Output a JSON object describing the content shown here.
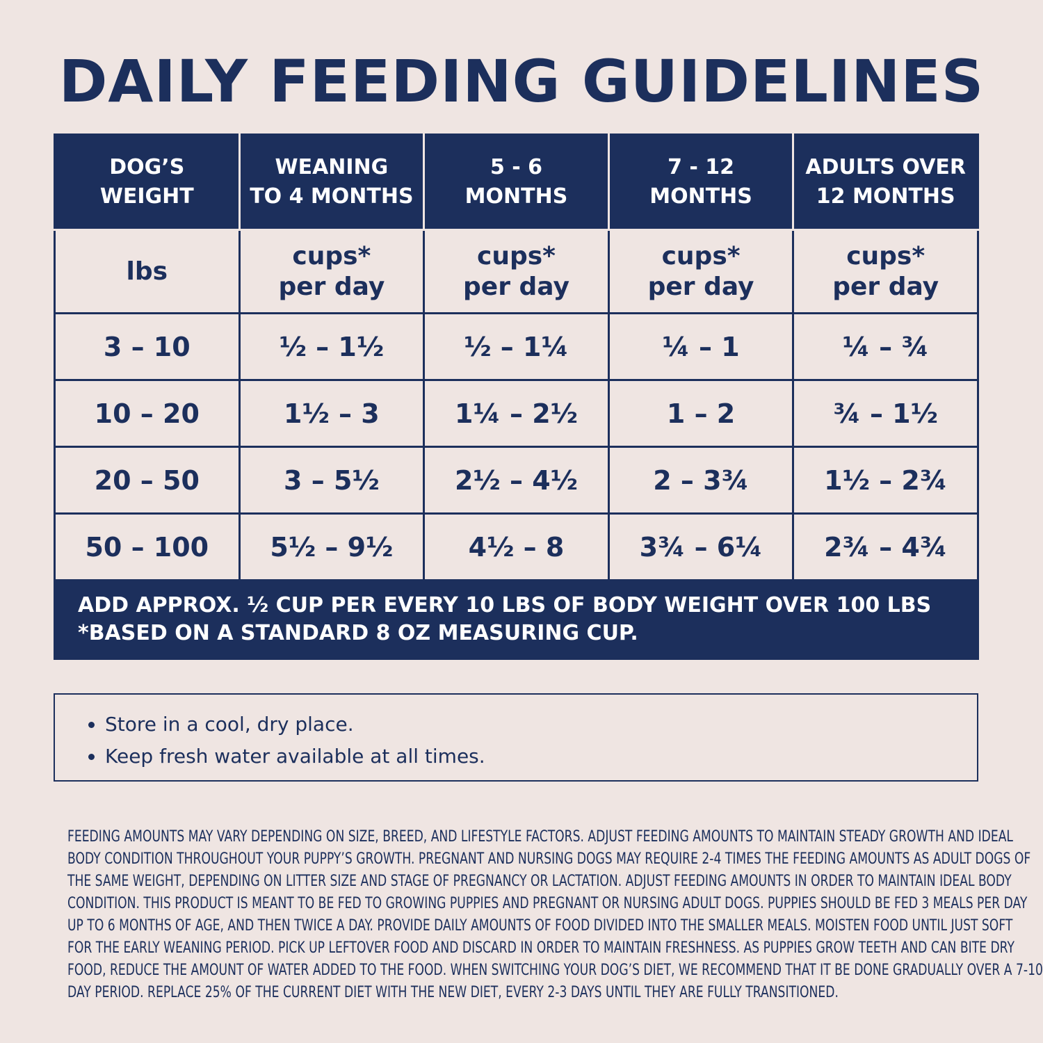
{
  "title": "DAILY FEEDING GUIDELINES",
  "table": {
    "header": [
      [
        "DOG’S",
        "WEIGHT"
      ],
      [
        "WEANING",
        "TO 4 MONTHS"
      ],
      [
        "5 - 6",
        "MONTHS"
      ],
      [
        "7 - 12",
        "MONTHS"
      ],
      [
        "ADULTS OVER",
        "12 MONTHS"
      ]
    ],
    "units": [
      [
        "lbs"
      ],
      [
        "cups*",
        "per day"
      ],
      [
        "cups*",
        "per day"
      ],
      [
        "cups*",
        "per day"
      ],
      [
        "cups*",
        "per day"
      ]
    ],
    "rows": [
      [
        "3 – 10",
        "½ – 1½",
        "½ – 1¼",
        "¼ – 1",
        "¼ – ¾"
      ],
      [
        "10 – 20",
        "1½ – 3",
        "1¼ – 2½",
        "1 – 2",
        "¾ – 1½"
      ],
      [
        "20 – 50",
        "3 – 5½",
        "2½ – 4½",
        "2 – 3¾",
        "1½ – 2¾"
      ],
      [
        "50 – 100",
        "5½ – 9½",
        "4½ – 8",
        "3¾ – 6¼",
        "2¾ – 4¾"
      ]
    ],
    "footer": [
      "ADD APPROX. ½ CUP PER EVERY 10 LBS OF BODY WEIGHT OVER 100 LBS",
      "*BASED ON A STANDARD 8 OZ MEASURING CUP."
    ]
  },
  "notes": [
    "Store in a cool, dry place.",
    "Keep fresh water available at all times."
  ],
  "fine_print": [
    "FEEDING AMOUNTS MAY VARY DEPENDING ON SIZE, BREED, AND LIFESTYLE FACTORS. ADJUST FEEDING AMOUNTS TO MAINTAIN STEADY GROWTH AND IDEAL",
    "BODY CONDITION THROUGHOUT YOUR PUPPY’S GROWTH. PREGNANT AND NURSING DOGS MAY REQUIRE 2-4 TIMES THE FEEDING AMOUNTS AS ADULT DOGS OF",
    "THE SAME WEIGHT, DEPENDING ON LITTER SIZE AND STAGE OF PREGNANCY OR LACTATION. ADJUST FEEDING AMOUNTS IN ORDER TO MAINTAIN IDEAL BODY",
    "CONDITION. THIS PRODUCT IS MEANT TO BE FED TO GROWING PUPPIES AND PREGNANT OR NURSING ADULT DOGS. PUPPIES SHOULD BE FED 3 MEALS PER DAY",
    "UP TO 6 MONTHS OF AGE, AND THEN TWICE A DAY. PROVIDE DAILY AMOUNTS OF FOOD DIVIDED INTO THE SMALLER MEALS. MOISTEN FOOD UNTIL JUST SOFT",
    "FOR THE EARLY WEANING PERIOD. PICK UP LEFTOVER FOOD AND DISCARD IN ORDER TO MAINTAIN FRESHNESS. AS PUPPIES GROW TEETH AND CAN BITE DRY",
    "FOOD, REDUCE THE AMOUNT OF WATER ADDED TO THE FOOD. WHEN SWITCHING YOUR DOG’S DIET, WE RECOMMEND THAT IT BE DONE GRADUALLY OVER A 7-10",
    "DAY PERIOD. REPLACE 25% OF THE CURRENT DIET WITH THE NEW DIET, EVERY 2-3 DAYS UNTIL THEY ARE FULLY TRANSITIONED."
  ]
}
